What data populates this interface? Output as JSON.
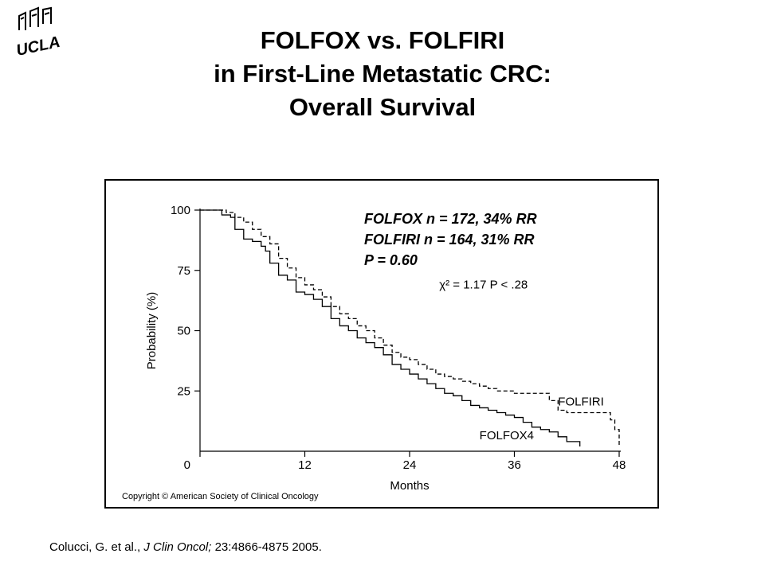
{
  "title": {
    "line1": "FOLFOX vs. FOLFIRI",
    "line2": "in First-Line Metastatic CRC:",
    "line3": "Overall Survival"
  },
  "logo": {
    "text": "UCLA"
  },
  "stats": {
    "line1": "FOLFOX n = 172, 34% RR",
    "line2": "FOLFIRI n = 164, 31% RR",
    "line3": "P = 0.60"
  },
  "citation": {
    "authors": "Colucci, G. et al., ",
    "journal": "J Clin Oncol;",
    "ref": " 23:4866-4875 2005."
  },
  "chart_data": {
    "type": "line",
    "title": "",
    "xlabel": "Months",
    "ylabel": "Probability (%)",
    "xlim": [
      0,
      48
    ],
    "ylim": [
      0,
      100
    ],
    "xticks": [
      0,
      12,
      24,
      36,
      48
    ],
    "yticks": [
      25,
      50,
      75,
      100
    ],
    "ytick_labels": [
      "25",
      "50",
      "75",
      "100"
    ],
    "xtick_labels": [
      "0",
      "12",
      "24",
      "36",
      "48"
    ],
    "origin_label": "0",
    "stat_annotation": "χ² = 1.17   P < .28",
    "copyright": "Copyright © American Society of Clinical Oncology",
    "series": [
      {
        "name": "FOLFOX4",
        "style": "solid",
        "color": "#000000",
        "x": [
          0,
          2,
          2.5,
          3.5,
          4,
          5,
          6,
          7,
          7.5,
          8,
          9,
          10,
          11,
          12,
          13,
          14,
          15,
          16,
          17,
          18,
          19,
          20,
          21,
          22,
          23,
          24,
          25,
          26,
          27,
          28,
          29,
          30,
          31,
          32,
          33,
          34,
          35,
          36,
          37,
          38,
          39,
          40,
          41,
          42,
          43.5
        ],
        "y": [
          100,
          100,
          98,
          97,
          92,
          88,
          87,
          85,
          83,
          78,
          73,
          71,
          66,
          65,
          63,
          60,
          55,
          52,
          50,
          47,
          45,
          43,
          40,
          36,
          34,
          32,
          30,
          28,
          26,
          24,
          23,
          21,
          19,
          18,
          17,
          16,
          15,
          14,
          12,
          10,
          9,
          8,
          6,
          4,
          2
        ]
      },
      {
        "name": "FOLFIRI",
        "style": "dashed",
        "color": "#000000",
        "x": [
          0,
          3,
          4,
          5,
          6,
          7,
          8,
          9,
          10,
          11,
          12,
          13,
          14,
          15,
          16,
          17,
          18,
          19,
          20,
          21,
          22,
          23,
          24,
          25,
          26,
          27,
          28,
          29,
          30,
          31,
          32,
          33,
          34,
          35,
          36,
          37,
          38,
          39,
          40,
          41,
          42,
          43,
          44,
          45,
          46,
          47,
          47.5,
          48
        ],
        "y": [
          100,
          99,
          97,
          95,
          92,
          89,
          86,
          80,
          76,
          72,
          69,
          67,
          64,
          60,
          57,
          55,
          52,
          50,
          47,
          44,
          41,
          39,
          38,
          36,
          34,
          32,
          31,
          30,
          29,
          28,
          27,
          26,
          25,
          25,
          24,
          24,
          24,
          24,
          21,
          17,
          16,
          16,
          16,
          16,
          16,
          13,
          9,
          2
        ]
      }
    ],
    "annotations": [
      {
        "text": "FOLFIRI",
        "x": 41,
        "y": 19
      },
      {
        "text": "FOLFOX4",
        "x": 32,
        "y": 5
      }
    ]
  }
}
